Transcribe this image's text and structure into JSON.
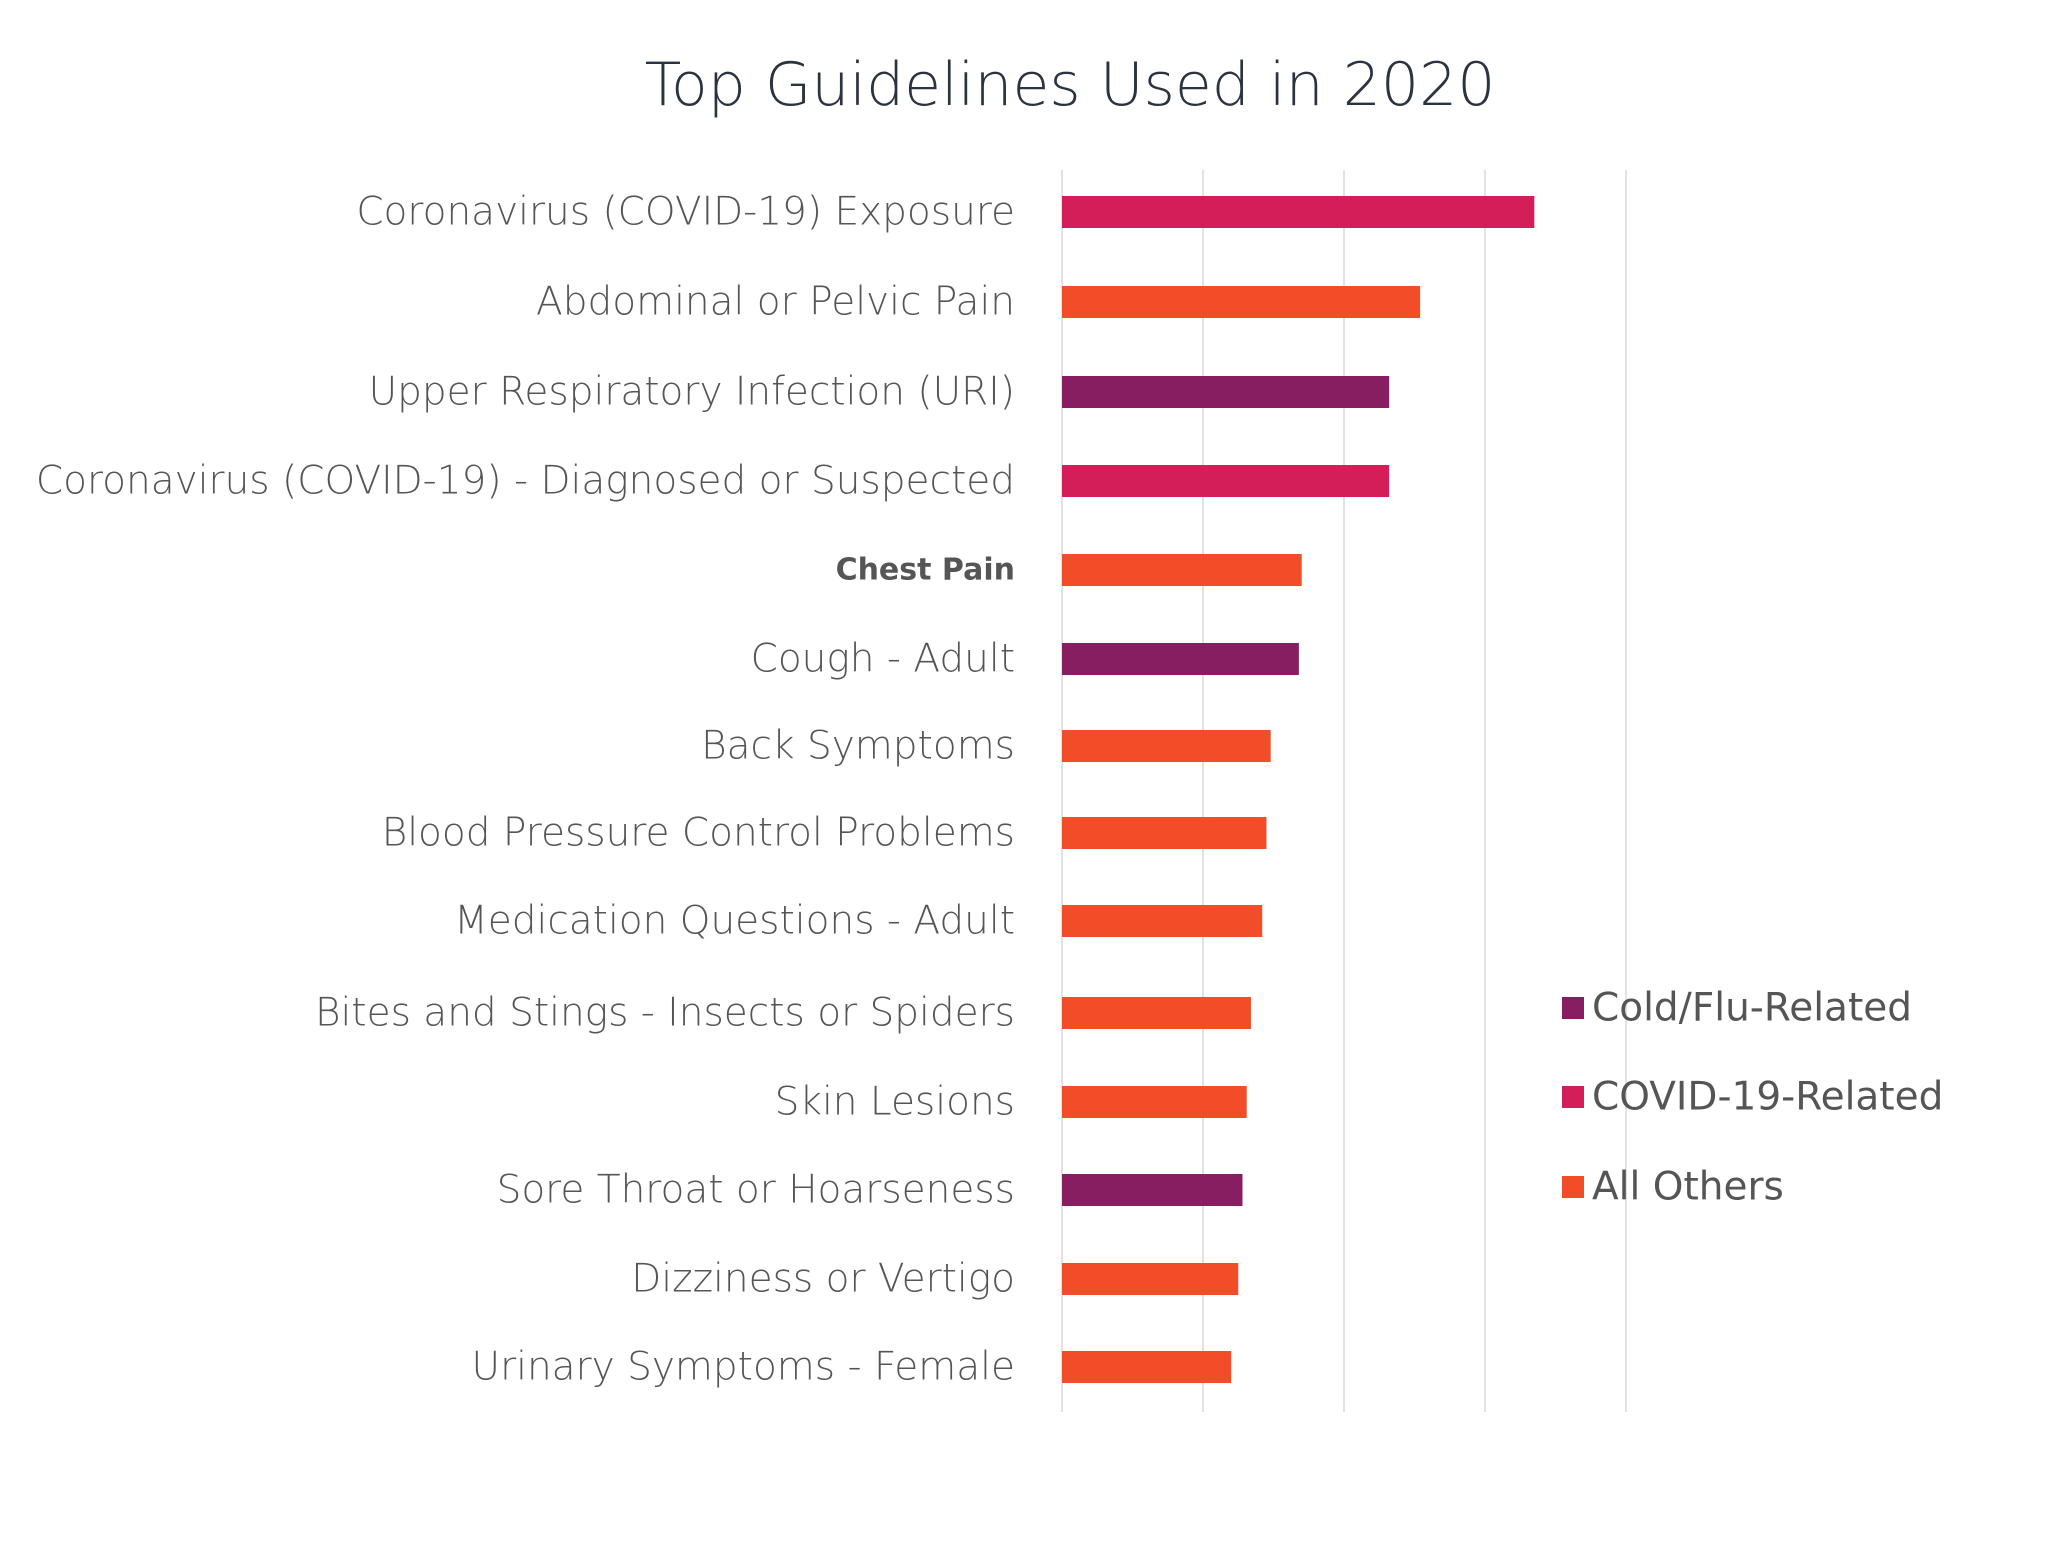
{
  "chart_data": {
    "type": "bar",
    "orientation": "horizontal",
    "title": "Top Guidelines Used in 2020",
    "xlabel": "",
    "ylabel": "",
    "grid": true,
    "legend_position": "right",
    "xlim": [
      0,
      4
    ],
    "categories": [
      "Coronavirus (COVID-19) Exposure",
      "Abdominal or Pelvic Pain",
      "Upper Respiratory Infection (URI)",
      "Coronavirus (COVID-19) - Diagnosed or Suspected",
      "Chest Pain",
      "Cough - Adult",
      "Back Symptoms",
      "Blood Pressure Control Problems",
      "Medication Questions - Adult",
      "Bites and Stings - Insects or Spiders",
      "Skin Lesions",
      "Sore Throat or Hoarseness",
      "Dizziness or Vertigo",
      "Urinary Symptoms - Female"
    ],
    "values": [
      3.35,
      2.54,
      2.32,
      2.32,
      1.7,
      1.68,
      1.48,
      1.45,
      1.42,
      1.34,
      1.31,
      1.28,
      1.25,
      1.2
    ],
    "groups": [
      "covid",
      "other",
      "cold",
      "covid",
      "other",
      "cold",
      "other",
      "other",
      "other",
      "other",
      "other",
      "cold",
      "other",
      "other"
    ],
    "bold_categories": [
      4
    ],
    "legend": [
      {
        "key": "cold",
        "label": "Cold/Flu-Related",
        "color": "#861e61"
      },
      {
        "key": "covid",
        "label": "COVID-19-Related",
        "color": "#d41e5a"
      },
      {
        "key": "other",
        "label": "All Others",
        "color": "#f04d28"
      }
    ]
  }
}
